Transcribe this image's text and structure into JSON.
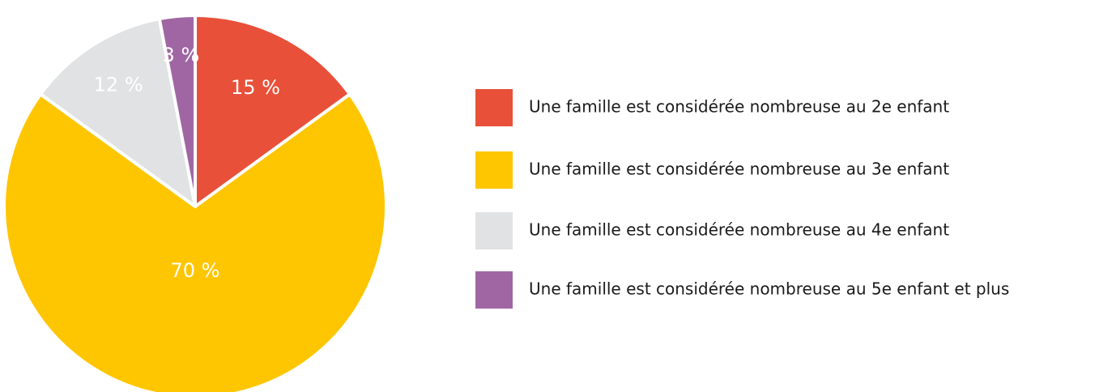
{
  "chart_data": {
    "type": "pie",
    "categories": [
      "Une famille est considérée nombreuse au 2e enfant",
      "Une famille est considérée nombreuse au 3e enfant",
      "Une famille est considérée nombreuse au 4e enfant",
      "Une famille est considérée nombreuse au 5e enfant et plus"
    ],
    "values": [
      15,
      70,
      12,
      3
    ],
    "value_labels": [
      "15 %",
      "70 %",
      "12 %",
      "3 %"
    ],
    "colors": [
      "#e8503a",
      "#fec600",
      "#e1e2e3",
      "#a066a3"
    ],
    "legend": "right"
  }
}
